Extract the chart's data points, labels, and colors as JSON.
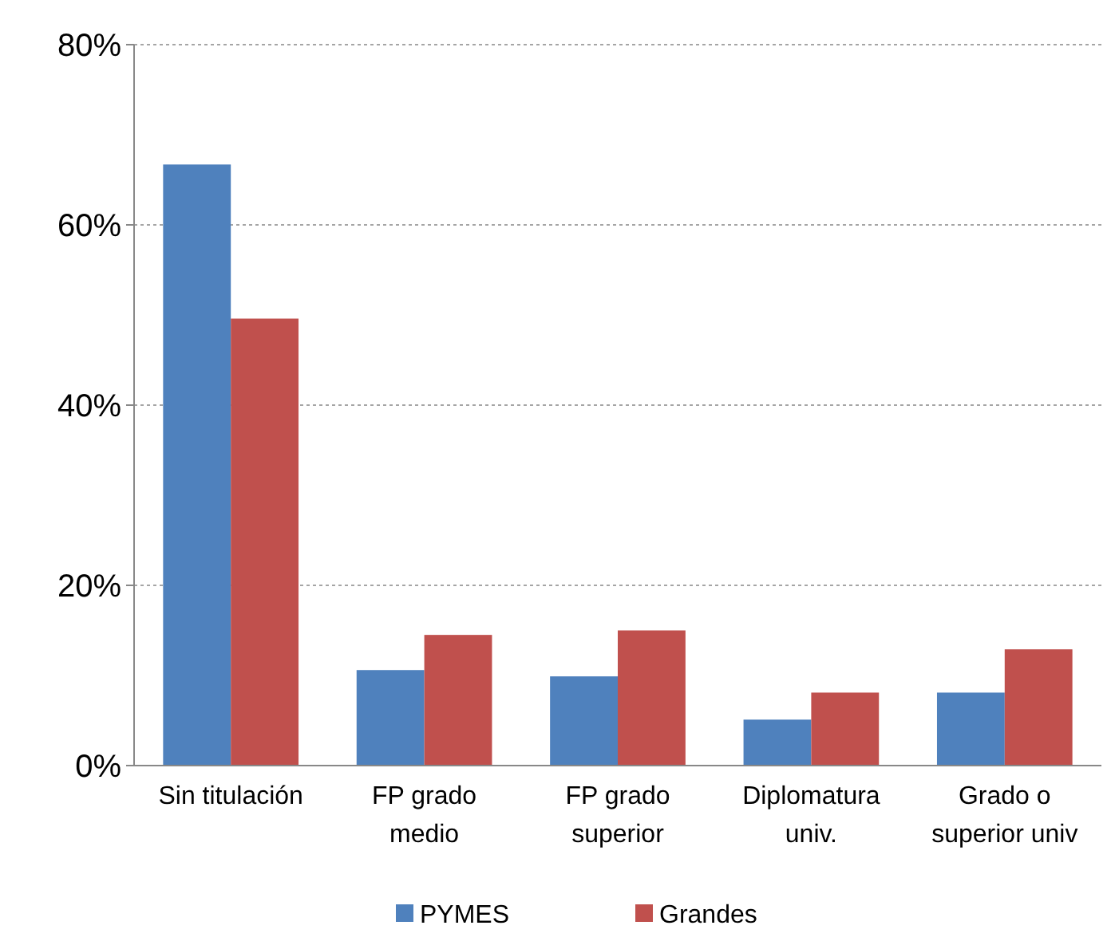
{
  "chart_data": {
    "type": "bar",
    "categories": [
      "Sin titulación",
      "FP grado medio",
      "FP grado superior",
      "Diplomatura univ.",
      "Grado o superior univ"
    ],
    "series": [
      {
        "name": "PYMES",
        "color": "#4f81bd",
        "values": [
          66.7,
          10.6,
          9.9,
          5.1,
          8.1
        ]
      },
      {
        "name": "Grandes",
        "color": "#c0504d",
        "values": [
          49.6,
          14.5,
          15.0,
          8.1,
          12.9
        ]
      }
    ],
    "ylim": [
      0,
      80
    ],
    "yticks": [
      {
        "value": 0,
        "label": "0%"
      },
      {
        "value": 20,
        "label": "20%"
      },
      {
        "value": 40,
        "label": "40%"
      },
      {
        "value": 60,
        "label": "60%"
      },
      {
        "value": 80,
        "label": "80%"
      }
    ],
    "grid": "y",
    "legend": "bottom"
  }
}
